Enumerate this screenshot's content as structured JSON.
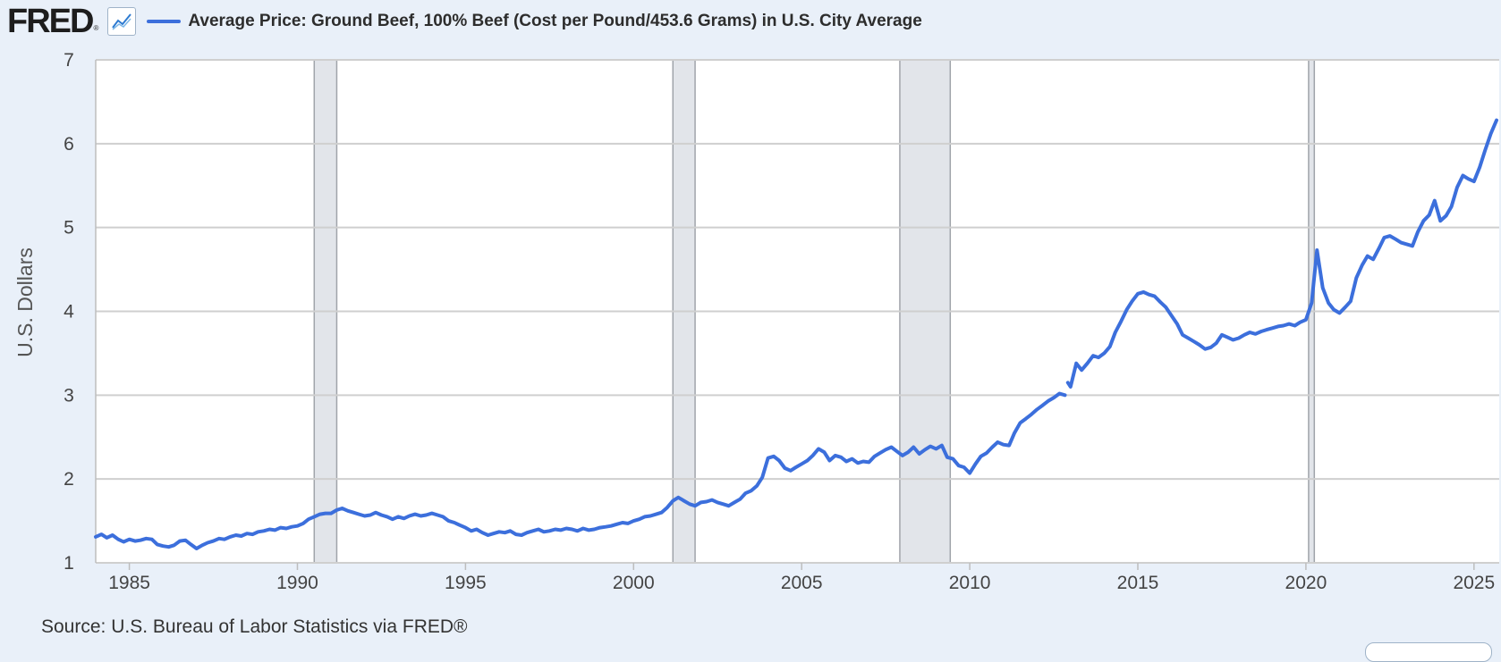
{
  "header": {
    "logo_text": "FRED",
    "logo_reg": "®",
    "icon": "line-chart-icon"
  },
  "source_text": "Source: U.S. Bureau of Labor Statistics via FRED®",
  "chart_data": {
    "type": "line",
    "title": "",
    "xlabel": "",
    "ylabel": "U.S. Dollars",
    "xlim": [
      1984.0,
      2025.75
    ],
    "ylim": [
      1,
      7
    ],
    "x_ticks": [
      1985,
      1990,
      1995,
      2000,
      2005,
      2010,
      2015,
      2020,
      2025
    ],
    "y_ticks": [
      1,
      2,
      3,
      4,
      5,
      6,
      7
    ],
    "grid": "horizontal",
    "legend_position": "top",
    "colors": {
      "series": "#3c6fdc",
      "recession": "#e2e5ea",
      "recession_edge": "#a0a4aa",
      "grid": "#cfcfcf",
      "background": "#ffffff"
    },
    "recessions": [
      [
        1990.5,
        1991.17
      ],
      [
        2001.17,
        2001.83
      ],
      [
        2007.92,
        2009.42
      ],
      [
        2020.08,
        2020.25
      ]
    ],
    "series": [
      {
        "name": "Average Price: Ground Beef, 100% Beef (Cost per Pound/453.6 Grams) in U.S. City Average",
        "segments": [
          [
            [
              1984.0,
              1.31
            ],
            [
              1984.17,
              1.34
            ],
            [
              1984.33,
              1.3
            ],
            [
              1984.5,
              1.33
            ],
            [
              1984.67,
              1.28
            ],
            [
              1984.83,
              1.25
            ],
            [
              1985.0,
              1.28
            ],
            [
              1985.17,
              1.26
            ],
            [
              1985.33,
              1.27
            ],
            [
              1985.5,
              1.29
            ],
            [
              1985.67,
              1.28
            ],
            [
              1985.83,
              1.22
            ],
            [
              1986.0,
              1.2
            ],
            [
              1986.17,
              1.19
            ],
            [
              1986.33,
              1.21
            ],
            [
              1986.5,
              1.26
            ],
            [
              1986.67,
              1.27
            ],
            [
              1986.83,
              1.22
            ],
            [
              1987.0,
              1.17
            ],
            [
              1987.17,
              1.21
            ],
            [
              1987.33,
              1.24
            ],
            [
              1987.5,
              1.26
            ],
            [
              1987.67,
              1.29
            ],
            [
              1987.83,
              1.28
            ],
            [
              1988.0,
              1.31
            ],
            [
              1988.17,
              1.33
            ],
            [
              1988.33,
              1.32
            ],
            [
              1988.5,
              1.35
            ],
            [
              1988.67,
              1.34
            ],
            [
              1988.83,
              1.37
            ],
            [
              1989.0,
              1.38
            ],
            [
              1989.17,
              1.4
            ],
            [
              1989.33,
              1.39
            ],
            [
              1989.5,
              1.42
            ],
            [
              1989.67,
              1.41
            ],
            [
              1989.83,
              1.43
            ],
            [
              1990.0,
              1.44
            ],
            [
              1990.17,
              1.47
            ],
            [
              1990.33,
              1.52
            ],
            [
              1990.5,
              1.55
            ],
            [
              1990.67,
              1.58
            ],
            [
              1990.83,
              1.59
            ],
            [
              1991.0,
              1.59
            ],
            [
              1991.17,
              1.63
            ],
            [
              1991.33,
              1.65
            ],
            [
              1991.5,
              1.62
            ],
            [
              1991.67,
              1.6
            ],
            [
              1991.83,
              1.58
            ],
            [
              1992.0,
              1.56
            ],
            [
              1992.17,
              1.57
            ],
            [
              1992.33,
              1.6
            ],
            [
              1992.5,
              1.57
            ],
            [
              1992.67,
              1.55
            ],
            [
              1992.83,
              1.52
            ],
            [
              1993.0,
              1.55
            ],
            [
              1993.17,
              1.53
            ],
            [
              1993.33,
              1.56
            ],
            [
              1993.5,
              1.58
            ],
            [
              1993.67,
              1.56
            ],
            [
              1993.83,
              1.57
            ],
            [
              1994.0,
              1.59
            ],
            [
              1994.17,
              1.57
            ],
            [
              1994.33,
              1.55
            ],
            [
              1994.5,
              1.5
            ],
            [
              1994.67,
              1.48
            ],
            [
              1994.83,
              1.45
            ],
            [
              1995.0,
              1.42
            ],
            [
              1995.17,
              1.38
            ],
            [
              1995.33,
              1.4
            ],
            [
              1995.5,
              1.36
            ],
            [
              1995.67,
              1.33
            ],
            [
              1995.83,
              1.35
            ],
            [
              1996.0,
              1.37
            ],
            [
              1996.17,
              1.36
            ],
            [
              1996.33,
              1.38
            ],
            [
              1996.5,
              1.34
            ],
            [
              1996.67,
              1.33
            ],
            [
              1996.83,
              1.36
            ],
            [
              1997.0,
              1.38
            ],
            [
              1997.17,
              1.4
            ],
            [
              1997.33,
              1.37
            ],
            [
              1997.5,
              1.38
            ],
            [
              1997.67,
              1.4
            ],
            [
              1997.83,
              1.39
            ],
            [
              1998.0,
              1.41
            ],
            [
              1998.17,
              1.4
            ],
            [
              1998.33,
              1.38
            ],
            [
              1998.5,
              1.41
            ],
            [
              1998.67,
              1.39
            ],
            [
              1998.83,
              1.4
            ],
            [
              1999.0,
              1.42
            ],
            [
              1999.17,
              1.43
            ],
            [
              1999.33,
              1.44
            ],
            [
              1999.5,
              1.46
            ],
            [
              1999.67,
              1.48
            ],
            [
              1999.83,
              1.47
            ],
            [
              2000.0,
              1.5
            ],
            [
              2000.17,
              1.52
            ],
            [
              2000.33,
              1.55
            ],
            [
              2000.5,
              1.56
            ],
            [
              2000.67,
              1.58
            ],
            [
              2000.83,
              1.6
            ],
            [
              2001.0,
              1.66
            ],
            [
              2001.17,
              1.74
            ],
            [
              2001.33,
              1.78
            ],
            [
              2001.5,
              1.74
            ],
            [
              2001.67,
              1.7
            ],
            [
              2001.83,
              1.68
            ],
            [
              2002.0,
              1.72
            ],
            [
              2002.17,
              1.73
            ],
            [
              2002.33,
              1.75
            ],
            [
              2002.5,
              1.72
            ],
            [
              2002.67,
              1.7
            ],
            [
              2002.83,
              1.68
            ],
            [
              2003.0,
              1.72
            ],
            [
              2003.17,
              1.76
            ],
            [
              2003.33,
              1.83
            ],
            [
              2003.5,
              1.86
            ],
            [
              2003.67,
              1.92
            ],
            [
              2003.83,
              2.02
            ],
            [
              2004.0,
              2.25
            ],
            [
              2004.17,
              2.27
            ],
            [
              2004.33,
              2.22
            ],
            [
              2004.5,
              2.13
            ],
            [
              2004.67,
              2.1
            ],
            [
              2004.83,
              2.14
            ],
            [
              2005.0,
              2.18
            ],
            [
              2005.17,
              2.22
            ],
            [
              2005.33,
              2.28
            ],
            [
              2005.5,
              2.36
            ],
            [
              2005.67,
              2.32
            ],
            [
              2005.83,
              2.22
            ],
            [
              2006.0,
              2.28
            ],
            [
              2006.17,
              2.26
            ],
            [
              2006.33,
              2.21
            ],
            [
              2006.5,
              2.24
            ],
            [
              2006.67,
              2.19
            ],
            [
              2006.83,
              2.21
            ],
            [
              2007.0,
              2.2
            ],
            [
              2007.17,
              2.27
            ],
            [
              2007.33,
              2.31
            ],
            [
              2007.5,
              2.35
            ],
            [
              2007.67,
              2.38
            ],
            [
              2007.83,
              2.33
            ],
            [
              2008.0,
              2.28
            ],
            [
              2008.17,
              2.32
            ],
            [
              2008.33,
              2.38
            ],
            [
              2008.5,
              2.3
            ],
            [
              2008.67,
              2.35
            ],
            [
              2008.83,
              2.39
            ],
            [
              2009.0,
              2.36
            ],
            [
              2009.17,
              2.4
            ],
            [
              2009.33,
              2.26
            ],
            [
              2009.5,
              2.24
            ],
            [
              2009.67,
              2.16
            ],
            [
              2009.83,
              2.14
            ],
            [
              2010.0,
              2.07
            ],
            [
              2010.17,
              2.18
            ],
            [
              2010.33,
              2.27
            ],
            [
              2010.5,
              2.31
            ],
            [
              2010.67,
              2.38
            ],
            [
              2010.83,
              2.44
            ],
            [
              2011.0,
              2.41
            ],
            [
              2011.17,
              2.4
            ],
            [
              2011.33,
              2.55
            ],
            [
              2011.5,
              2.67
            ],
            [
              2011.67,
              2.72
            ],
            [
              2011.83,
              2.77
            ],
            [
              2012.0,
              2.83
            ],
            [
              2012.17,
              2.88
            ],
            [
              2012.33,
              2.93
            ],
            [
              2012.5,
              2.97
            ],
            [
              2012.67,
              3.02
            ],
            [
              2012.83,
              3.0
            ]
          ],
          [
            [
              2012.92,
              3.15
            ],
            [
              2013.0,
              3.1
            ],
            [
              2013.17,
              3.38
            ],
            [
              2013.33,
              3.3
            ],
            [
              2013.5,
              3.38
            ],
            [
              2013.67,
              3.47
            ],
            [
              2013.83,
              3.45
            ],
            [
              2014.0,
              3.5
            ],
            [
              2014.17,
              3.58
            ],
            [
              2014.33,
              3.75
            ],
            [
              2014.5,
              3.88
            ],
            [
              2014.67,
              4.02
            ],
            [
              2014.83,
              4.12
            ],
            [
              2015.0,
              4.21
            ],
            [
              2015.17,
              4.23
            ],
            [
              2015.33,
              4.2
            ],
            [
              2015.5,
              4.18
            ],
            [
              2015.67,
              4.11
            ],
            [
              2015.83,
              4.05
            ],
            [
              2016.0,
              3.95
            ],
            [
              2016.17,
              3.85
            ],
            [
              2016.33,
              3.72
            ],
            [
              2016.5,
              3.68
            ],
            [
              2016.67,
              3.64
            ],
            [
              2016.83,
              3.6
            ],
            [
              2017.0,
              3.55
            ],
            [
              2017.17,
              3.57
            ],
            [
              2017.33,
              3.62
            ],
            [
              2017.5,
              3.72
            ],
            [
              2017.67,
              3.69
            ],
            [
              2017.83,
              3.66
            ],
            [
              2018.0,
              3.68
            ],
            [
              2018.17,
              3.72
            ],
            [
              2018.33,
              3.75
            ],
            [
              2018.5,
              3.73
            ],
            [
              2018.67,
              3.76
            ],
            [
              2018.83,
              3.78
            ],
            [
              2019.0,
              3.8
            ],
            [
              2019.17,
              3.82
            ],
            [
              2019.33,
              3.83
            ],
            [
              2019.5,
              3.85
            ],
            [
              2019.67,
              3.83
            ],
            [
              2019.83,
              3.87
            ],
            [
              2020.0,
              3.9
            ],
            [
              2020.17,
              4.1
            ],
            [
              2020.33,
              4.73
            ],
            [
              2020.5,
              4.28
            ],
            [
              2020.67,
              4.1
            ],
            [
              2020.83,
              4.02
            ],
            [
              2021.0,
              3.98
            ],
            [
              2021.17,
              4.05
            ],
            [
              2021.33,
              4.12
            ],
            [
              2021.5,
              4.4
            ],
            [
              2021.67,
              4.55
            ],
            [
              2021.83,
              4.66
            ],
            [
              2022.0,
              4.62
            ],
            [
              2022.17,
              4.75
            ],
            [
              2022.33,
              4.88
            ],
            [
              2022.5,
              4.9
            ],
            [
              2022.67,
              4.86
            ],
            [
              2022.83,
              4.82
            ],
            [
              2023.0,
              4.8
            ],
            [
              2023.17,
              4.78
            ],
            [
              2023.33,
              4.95
            ],
            [
              2023.5,
              5.08
            ],
            [
              2023.67,
              5.15
            ],
            [
              2023.83,
              5.32
            ],
            [
              2024.0,
              5.08
            ],
            [
              2024.17,
              5.14
            ],
            [
              2024.33,
              5.25
            ],
            [
              2024.5,
              5.48
            ],
            [
              2024.67,
              5.62
            ],
            [
              2024.83,
              5.58
            ],
            [
              2025.0,
              5.55
            ],
            [
              2025.17,
              5.72
            ],
            [
              2025.33,
              5.92
            ],
            [
              2025.5,
              6.12
            ],
            [
              2025.67,
              6.28
            ]
          ]
        ]
      }
    ]
  }
}
